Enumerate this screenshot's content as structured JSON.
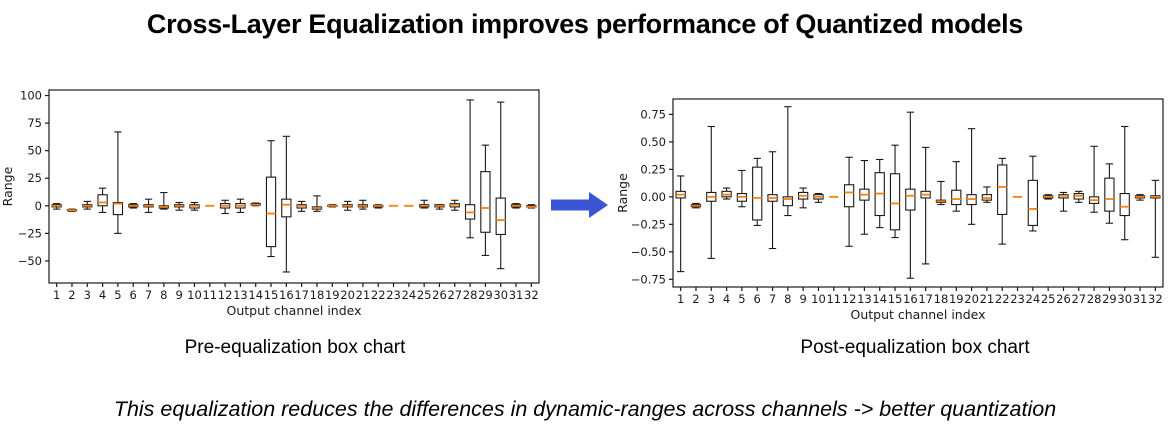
{
  "title": "Cross-Layer Equalization improves performance of Quantized models",
  "arrow": {
    "icon": "right-arrow-icon",
    "color": "#3a56d4"
  },
  "captions": {
    "left": "Pre-equalization box chart",
    "right": "Post-equalization box chart",
    "bottom": "This equalization reduces the differences in dynamic-ranges across channels -> better quantization"
  },
  "chart_data": [
    {
      "id": "pre",
      "type": "boxplot",
      "title": "Pre-equalization box chart",
      "xlabel": "Output channel index",
      "ylabel": "Range",
      "ylim": [
        -70,
        105
      ],
      "yticks": [
        100,
        75,
        50,
        25,
        0,
        -25,
        -50
      ],
      "ytick_labels": [
        "100",
        "75",
        "50",
        "25",
        "0",
        "−25",
        "−50"
      ],
      "categories": [
        "1",
        "2",
        "3",
        "4",
        "5",
        "6",
        "7",
        "8",
        "9",
        "10",
        "11",
        "12",
        "13",
        "14",
        "15",
        "16",
        "17",
        "18",
        "19",
        "20",
        "21",
        "22",
        "23",
        "24",
        "25",
        "26",
        "27",
        "28",
        "29",
        "30",
        "31",
        "32"
      ],
      "grid": false,
      "legend": "none",
      "median_color": "#ff7f0e",
      "box_edge_color": "#1a1a1a",
      "boxes_format": "[whisker_low, q1, median, q3, whisker_high]",
      "boxes": [
        [
          -3,
          -1,
          0,
          1,
          2
        ],
        [
          -5,
          -4.5,
          -4,
          -3.5,
          -3
        ],
        [
          -3,
          -1,
          0,
          1,
          4
        ],
        [
          -6,
          0,
          3,
          10,
          16
        ],
        [
          -25,
          -8,
          2,
          3,
          67
        ],
        [
          -2,
          -1,
          0,
          1,
          2
        ],
        [
          -6,
          -1,
          0,
          1,
          6
        ],
        [
          -3,
          -2,
          -1,
          0,
          12
        ],
        [
          -4,
          -1,
          0,
          1,
          3
        ],
        [
          -4,
          -2,
          0,
          1,
          3
        ],
        [
          0,
          0,
          0,
          0,
          0
        ],
        [
          -7,
          -2,
          0,
          2,
          5
        ],
        [
          -6,
          -2,
          0,
          2,
          6
        ],
        [
          0,
          0.5,
          1,
          2,
          2.5
        ],
        [
          -46,
          -37,
          -7,
          26,
          59
        ],
        [
          -60,
          -10,
          1,
          6,
          63
        ],
        [
          -5,
          -2,
          0,
          1,
          4
        ],
        [
          -5,
          -3,
          -2,
          -1,
          9
        ],
        [
          -1,
          -0.5,
          0,
          0.5,
          1
        ],
        [
          -4,
          -1,
          0,
          1,
          4
        ],
        [
          -3,
          -1,
          0,
          1,
          5
        ],
        [
          -2,
          -1,
          0,
          0.5,
          1
        ],
        [
          0,
          0,
          0,
          0,
          0
        ],
        [
          0,
          0,
          0,
          0,
          0
        ],
        [
          -2,
          -1,
          0,
          1,
          5
        ],
        [
          -3,
          -1,
          0,
          1,
          1
        ],
        [
          -4,
          -1,
          1,
          2,
          5
        ],
        [
          -29,
          -12,
          -6,
          1,
          96
        ],
        [
          -45,
          -24,
          -2,
          31,
          55
        ],
        [
          -57,
          -26,
          -13,
          7,
          94
        ],
        [
          -2,
          -1,
          0,
          1,
          2
        ],
        [
          -2,
          -1,
          -1,
          0,
          1
        ]
      ]
    },
    {
      "id": "post",
      "type": "boxplot",
      "title": "Post-equalization box chart",
      "xlabel": "Output channel index",
      "ylabel": "Range",
      "ylim": [
        -0.82,
        0.89
      ],
      "yticks": [
        0.75,
        0.5,
        0.25,
        0,
        -0.25,
        -0.5,
        -0.75
      ],
      "ytick_labels": [
        "0.75",
        "0.50",
        "0.25",
        "0.00",
        "−0.25",
        "−0.50",
        "−0.75"
      ],
      "categories": [
        "1",
        "2",
        "3",
        "4",
        "5",
        "6",
        "7",
        "8",
        "9",
        "10",
        "11",
        "12",
        "13",
        "14",
        "15",
        "16",
        "17",
        "18",
        "19",
        "20",
        "21",
        "22",
        "23",
        "24",
        "25",
        "26",
        "27",
        "28",
        "29",
        "30",
        "31",
        "32"
      ],
      "grid": false,
      "legend": "none",
      "median_color": "#ff7f0e",
      "box_edge_color": "#1a1a1a",
      "boxes_format": "[whisker_low, q1, median, q3, whisker_high]",
      "boxes": [
        [
          -0.68,
          -0.01,
          0.02,
          0.05,
          0.19
        ],
        [
          -0.1,
          -0.09,
          -0.08,
          -0.07,
          -0.06
        ],
        [
          -0.56,
          -0.04,
          0.0,
          0.04,
          0.64
        ],
        [
          -0.02,
          0.0,
          0.02,
          0.05,
          0.08
        ],
        [
          -0.09,
          -0.04,
          0.0,
          0.03,
          0.24
        ],
        [
          -0.26,
          -0.21,
          -0.01,
          0.27,
          0.35
        ],
        [
          -0.47,
          -0.04,
          -0.01,
          0.02,
          0.41
        ],
        [
          -0.17,
          -0.08,
          -0.02,
          0.0,
          0.82
        ],
        [
          -0.1,
          -0.02,
          0.01,
          0.04,
          0.08
        ],
        [
          -0.05,
          -0.02,
          0.0,
          0.02,
          0.03
        ],
        [
          0,
          0,
          0,
          0,
          0
        ],
        [
          -0.45,
          -0.09,
          0.04,
          0.11,
          0.36
        ],
        [
          -0.34,
          -0.03,
          0.02,
          0.07,
          0.33
        ],
        [
          -0.28,
          -0.17,
          0.03,
          0.22,
          0.34
        ],
        [
          -0.37,
          -0.3,
          -0.06,
          0.21,
          0.47
        ],
        [
          -0.74,
          -0.12,
          0.01,
          0.07,
          0.77
        ],
        [
          -0.61,
          -0.01,
          0.02,
          0.05,
          0.45
        ],
        [
          -0.07,
          -0.05,
          -0.04,
          -0.03,
          0.14
        ],
        [
          -0.13,
          -0.07,
          -0.02,
          0.06,
          0.32
        ],
        [
          -0.25,
          -0.07,
          -0.02,
          0.02,
          0.62
        ],
        [
          -0.05,
          -0.03,
          -0.01,
          0.02,
          0.09
        ],
        [
          -0.43,
          -0.16,
          0.09,
          0.29,
          0.35
        ],
        [
          0,
          0,
          0,
          0,
          0
        ],
        [
          -0.31,
          -0.26,
          -0.11,
          0.15,
          0.37
        ],
        [
          -0.02,
          -0.01,
          0.0,
          0.01,
          0.02
        ],
        [
          -0.13,
          -0.01,
          0.01,
          0.02,
          0.04
        ],
        [
          -0.05,
          -0.02,
          0.01,
          0.03,
          0.05
        ],
        [
          -0.14,
          -0.06,
          -0.03,
          0.0,
          0.46
        ],
        [
          -0.24,
          -0.13,
          -0.02,
          0.17,
          0.3
        ],
        [
          -0.39,
          -0.17,
          -0.09,
          0.03,
          0.64
        ],
        [
          -0.03,
          -0.01,
          0.0,
          0.01,
          0.02
        ],
        [
          -0.55,
          -0.01,
          0.0,
          0.01,
          0.15
        ]
      ]
    }
  ]
}
